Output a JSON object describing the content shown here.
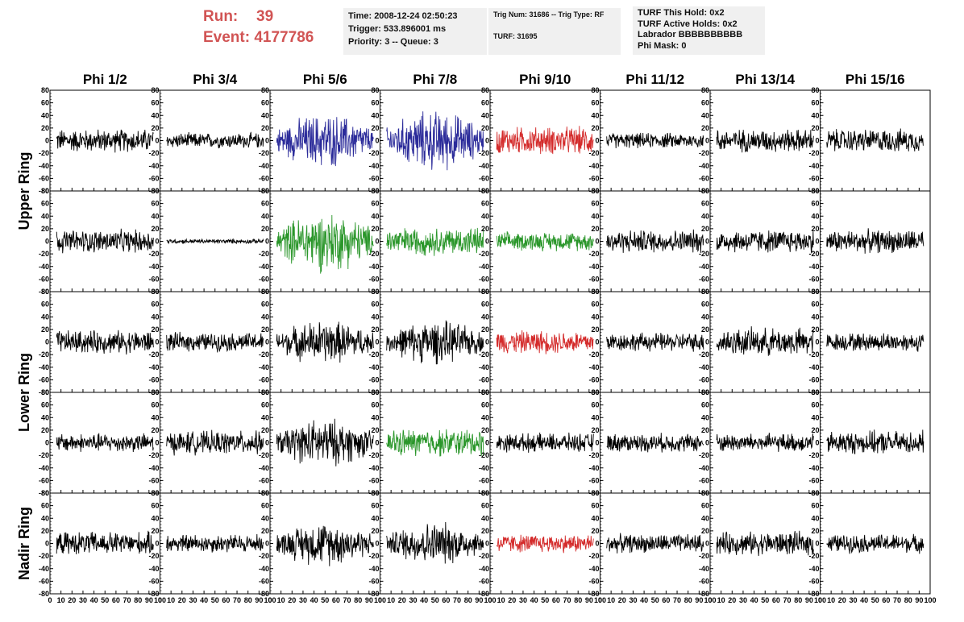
{
  "header": {
    "run_label": "Run:",
    "run_value": "39",
    "event_label": "Event:",
    "event_value": "4177786",
    "time_text": "Time: 2008-12-24 02:50:23",
    "trigger_text": "Trigger: 533.896001 ms",
    "priority_text": "Priority: 3 -- Queue: 3",
    "trig_num_text": "Trig Num: 31686 -- Trig Type: RF",
    "turf_text": "TURF: 31695",
    "turf_hold_text": "TURF This Hold: 0x2",
    "turf_active_text": "TURF Active Holds: 0x2",
    "labrador_text": "Labrador BBBBBBBBBB",
    "phi_mask_text": "Phi Mask: 0"
  },
  "chart_data": {
    "type": "line",
    "column_titles": [
      "Phi 1/2",
      "Phi 3/4",
      "Phi 5/6",
      "Phi 7/8",
      "Phi 9/10",
      "Phi 11/12",
      "Phi 13/14",
      "Phi 15/16"
    ],
    "row_group_labels": [
      "Upper Ring",
      "Lower Ring",
      "Nadir Ring"
    ],
    "rows": 5,
    "ylim": [
      -80,
      80
    ],
    "yticks": [
      -80,
      -60,
      -40,
      -20,
      0,
      20,
      40,
      60,
      80
    ],
    "xlim": [
      0,
      100
    ],
    "xticks": [
      0,
      10,
      20,
      30,
      40,
      50,
      60,
      70,
      80,
      90,
      100
    ],
    "colors": {
      "normal": "#000000",
      "blue": "#2b2b9a",
      "green": "#2a962a",
      "red": "#d42b2b"
    },
    "panel_colors": [
      [
        "normal",
        "normal",
        "blue",
        "blue",
        "red",
        "normal",
        "normal",
        "normal"
      ],
      [
        "normal",
        "normal",
        "green",
        "green",
        "green",
        "normal",
        "normal",
        "normal"
      ],
      [
        "normal",
        "normal",
        "normal",
        "normal",
        "red",
        "normal",
        "normal",
        "normal"
      ],
      [
        "normal",
        "normal",
        "normal",
        "green",
        "normal",
        "normal",
        "normal",
        "normal"
      ],
      [
        "normal",
        "normal",
        "normal",
        "normal",
        "red",
        "normal",
        "normal",
        "normal"
      ]
    ],
    "panel_amplitudes": [
      [
        15,
        10,
        25,
        28,
        18,
        10,
        15,
        15
      ],
      [
        15,
        3,
        28,
        18,
        12,
        15,
        15,
        15
      ],
      [
        15,
        12,
        20,
        20,
        15,
        12,
        18,
        12
      ],
      [
        12,
        15,
        22,
        18,
        12,
        12,
        12,
        15
      ],
      [
        15,
        12,
        20,
        20,
        12,
        12,
        15,
        12
      ]
    ]
  }
}
